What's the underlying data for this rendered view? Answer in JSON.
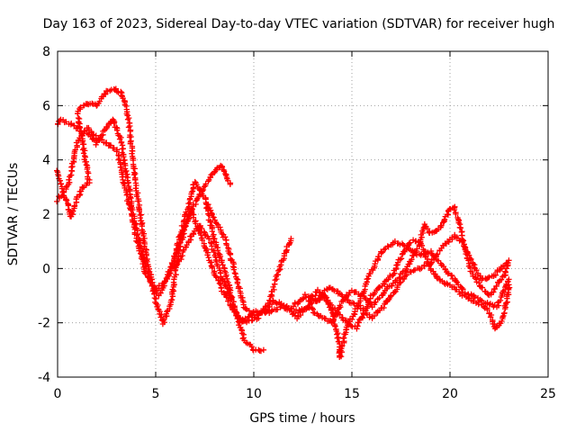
{
  "chart_data": {
    "type": "scatter",
    "title": "Day 163 of 2023, Sidereal Day-to-day VTEC variation (SDTVAR) for receiver hugh",
    "xlabel": "GPS time / hours",
    "ylabel": "SDTVAR / TECUs",
    "xlim": [
      0,
      25
    ],
    "ylim": [
      -4,
      8
    ],
    "xticks": [
      0,
      5,
      10,
      15,
      20,
      25
    ],
    "yticks": [
      -4,
      -2,
      0,
      2,
      4,
      6,
      8
    ],
    "xtick_labels": [
      "0",
      "5",
      "10",
      "15",
      "20",
      "25"
    ],
    "ytick_labels": [
      "-4",
      "-2",
      "0",
      "2",
      "4",
      "6",
      "8"
    ],
    "grid": true,
    "marker": "+",
    "color": "#ff0000",
    "series": [
      {
        "name": "trace-1",
        "points": [
          [
            0.0,
            2.5
          ],
          [
            0.5,
            3.0
          ],
          [
            1.0,
            4.6
          ],
          [
            1.5,
            5.2
          ],
          [
            2.0,
            4.8
          ],
          [
            2.5,
            4.6
          ],
          [
            3.0,
            4.4
          ],
          [
            3.5,
            2.8
          ],
          [
            4.0,
            1.2
          ],
          [
            4.5,
            -0.2
          ],
          [
            5.0,
            -0.8
          ],
          [
            5.5,
            -0.5
          ],
          [
            6.0,
            0.5
          ],
          [
            6.5,
            1.6
          ],
          [
            7.0,
            2.4
          ],
          [
            7.5,
            3.0
          ],
          [
            8.0,
            3.6
          ],
          [
            8.3,
            3.8
          ],
          [
            8.6,
            3.4
          ],
          [
            8.8,
            3.1
          ]
        ]
      },
      {
        "name": "trace-2",
        "points": [
          [
            0.0,
            3.6
          ],
          [
            0.4,
            2.6
          ],
          [
            0.7,
            1.9
          ],
          [
            1.0,
            2.6
          ],
          [
            1.3,
            3.0
          ],
          [
            1.6,
            3.2
          ],
          [
            1.0,
            5.8
          ],
          [
            1.5,
            6.1
          ],
          [
            2.0,
            6.0
          ],
          [
            2.5,
            6.5
          ],
          [
            3.0,
            6.6
          ],
          [
            3.3,
            6.4
          ],
          [
            3.6,
            5.6
          ],
          [
            4.0,
            3.0
          ],
          [
            4.5,
            0.6
          ],
          [
            5.0,
            -1.2
          ],
          [
            5.4,
            -2.0
          ],
          [
            5.8,
            -1.2
          ],
          [
            6.2,
            0.8
          ],
          [
            6.8,
            2.2
          ],
          [
            7.2,
            1.4
          ],
          [
            7.8,
            0.2
          ],
          [
            8.4,
            -0.8
          ],
          [
            9.0,
            -1.6
          ],
          [
            9.6,
            -2.0
          ],
          [
            10.2,
            -1.8
          ],
          [
            10.8,
            -1.2
          ],
          [
            11.4,
            0.2
          ],
          [
            11.9,
            1.1
          ]
        ]
      },
      {
        "name": "trace-3",
        "points": [
          [
            0.0,
            5.3
          ],
          [
            0.2,
            5.5
          ],
          [
            1.5,
            5.0
          ],
          [
            2.0,
            4.6
          ],
          [
            2.5,
            5.2
          ],
          [
            2.8,
            5.5
          ],
          [
            3.2,
            4.8
          ],
          [
            3.8,
            2.2
          ],
          [
            4.3,
            0.6
          ],
          [
            4.8,
            -0.6
          ],
          [
            5.2,
            -1.0
          ],
          [
            5.8,
            0.0
          ],
          [
            6.4,
            1.6
          ],
          [
            7.0,
            3.2
          ],
          [
            7.5,
            2.6
          ],
          [
            8.0,
            1.0
          ],
          [
            8.5,
            0.0
          ],
          [
            9.0,
            -1.4
          ],
          [
            9.5,
            -2.6
          ],
          [
            10.0,
            -3.0
          ],
          [
            10.5,
            -3.0
          ]
        ]
      },
      {
        "name": "trace-4",
        "points": [
          [
            6.0,
            0.0
          ],
          [
            6.6,
            0.9
          ],
          [
            7.2,
            1.6
          ],
          [
            7.8,
            1.0
          ],
          [
            8.3,
            -0.2
          ],
          [
            8.8,
            -1.0
          ],
          [
            9.3,
            -2.0
          ],
          [
            10.0,
            -1.6
          ],
          [
            10.8,
            -1.6
          ],
          [
            11.5,
            -1.4
          ],
          [
            12.2,
            -1.8
          ],
          [
            12.9,
            -1.3
          ],
          [
            13.6,
            -1.0
          ],
          [
            14.0,
            -1.6
          ],
          [
            14.3,
            -2.6
          ],
          [
            14.4,
            -3.3
          ],
          [
            14.7,
            -2.2
          ],
          [
            15.3,
            -1.4
          ],
          [
            15.8,
            -0.4
          ],
          [
            16.5,
            0.6
          ],
          [
            17.2,
            1.0
          ],
          [
            17.8,
            0.8
          ],
          [
            18.4,
            0.5
          ],
          [
            19.0,
            0.6
          ],
          [
            19.6,
            0.1
          ],
          [
            20.2,
            -0.4
          ],
          [
            20.8,
            -0.9
          ],
          [
            21.4,
            -1.1
          ],
          [
            22.0,
            -1.3
          ],
          [
            22.4,
            -1.4
          ],
          [
            22.7,
            -0.9
          ],
          [
            23.0,
            -0.4
          ]
        ]
      },
      {
        "name": "trace-5",
        "points": [
          [
            7.6,
            2.4
          ],
          [
            8.0,
            1.8
          ],
          [
            8.6,
            1.0
          ],
          [
            9.0,
            0.0
          ],
          [
            9.5,
            -1.4
          ],
          [
            10.0,
            -1.8
          ],
          [
            10.6,
            -1.6
          ],
          [
            11.0,
            -1.2
          ],
          [
            11.6,
            -1.4
          ],
          [
            12.2,
            -1.6
          ],
          [
            12.8,
            -1.4
          ],
          [
            13.4,
            -1.8
          ],
          [
            14.0,
            -2.0
          ],
          [
            14.5,
            -1.2
          ],
          [
            15.0,
            -0.8
          ],
          [
            15.6,
            -1.0
          ],
          [
            16.0,
            -1.4
          ],
          [
            16.6,
            -0.9
          ],
          [
            17.2,
            -0.5
          ],
          [
            17.8,
            0.0
          ],
          [
            18.4,
            0.8
          ],
          [
            18.7,
            1.6
          ],
          [
            19.0,
            1.3
          ],
          [
            19.3,
            1.4
          ],
          [
            19.6,
            1.6
          ],
          [
            20.0,
            2.2
          ],
          [
            20.2,
            2.3
          ],
          [
            20.5,
            1.6
          ],
          [
            21.0,
            0.0
          ],
          [
            21.5,
            -0.6
          ],
          [
            22.0,
            -1.0
          ],
          [
            22.4,
            -0.6
          ],
          [
            22.8,
            -0.2
          ],
          [
            23.0,
            0.3
          ]
        ]
      },
      {
        "name": "trace-6",
        "points": [
          [
            12.8,
            -1.2
          ],
          [
            13.3,
            -0.8
          ],
          [
            13.8,
            -1.2
          ],
          [
            14.2,
            -1.6
          ],
          [
            14.8,
            -2.0
          ],
          [
            15.2,
            -2.2
          ],
          [
            15.5,
            -1.8
          ],
          [
            16.0,
            -1.0
          ],
          [
            16.6,
            -0.6
          ],
          [
            17.1,
            -0.2
          ],
          [
            17.6,
            0.6
          ],
          [
            18.0,
            1.0
          ],
          [
            18.5,
            1.0
          ],
          [
            19.0,
            0.0
          ],
          [
            19.5,
            -0.5
          ],
          [
            20.0,
            -0.6
          ],
          [
            20.5,
            -0.9
          ],
          [
            21.0,
            -1.1
          ],
          [
            21.5,
            -1.3
          ],
          [
            22.0,
            -1.6
          ],
          [
            22.3,
            -2.2
          ],
          [
            22.6,
            -2.0
          ],
          [
            22.9,
            -1.2
          ],
          [
            23.0,
            -0.6
          ]
        ]
      },
      {
        "name": "trace-7",
        "points": [
          [
            12.0,
            -1.4
          ],
          [
            12.6,
            -1.0
          ],
          [
            13.2,
            -1.2
          ],
          [
            13.8,
            -0.7
          ],
          [
            14.2,
            -0.8
          ],
          [
            14.8,
            -1.2
          ],
          [
            15.4,
            -1.4
          ],
          [
            16.0,
            -1.8
          ],
          [
            16.6,
            -1.4
          ],
          [
            17.2,
            -0.8
          ],
          [
            17.8,
            -0.2
          ],
          [
            18.4,
            0.0
          ],
          [
            19.0,
            0.2
          ],
          [
            19.6,
            0.8
          ],
          [
            20.2,
            1.2
          ],
          [
            20.6,
            1.0
          ],
          [
            21.0,
            0.4
          ],
          [
            21.6,
            -0.4
          ],
          [
            22.2,
            -0.3
          ],
          [
            22.6,
            0.0
          ],
          [
            22.9,
            0.2
          ]
        ]
      }
    ]
  }
}
